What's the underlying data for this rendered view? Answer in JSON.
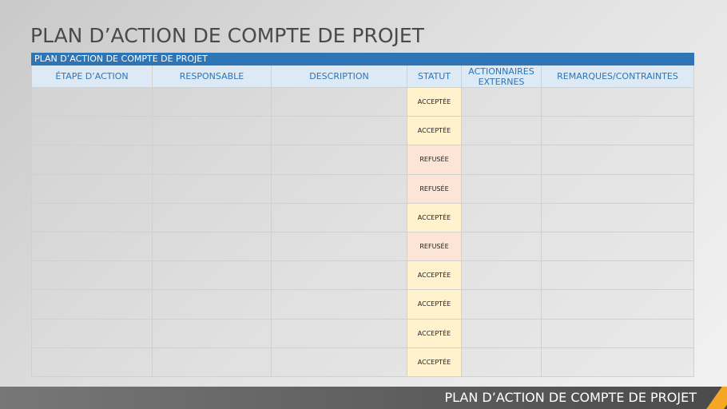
{
  "header": {
    "title": "PLAN D’ACTION DE COMPTE DE PROJET"
  },
  "table": {
    "banner": "PLAN D’ACTION DE COMPTE DE PROJET",
    "columns": [
      "ÉTAPE D’ACTION",
      "RESPONSABLE",
      "DESCRIPTION",
      "STATUT",
      "ACTIONNAIRES EXTERNES",
      "REMARQUES/CONTRAINTES"
    ],
    "statuses": [
      "ACCEPTÉE",
      "ACCEPTÉE",
      "REFUSÉE",
      "REFUSÉE",
      "ACCEPTÉE",
      "REFUSÉE",
      "ACCEPTÉE",
      "ACCEPTÉE",
      "ACCEPTÉE",
      "ACCEPTÉE"
    ]
  },
  "footer": {
    "text": "PLAN D’ACTION DE COMPTE DE PROJET"
  }
}
